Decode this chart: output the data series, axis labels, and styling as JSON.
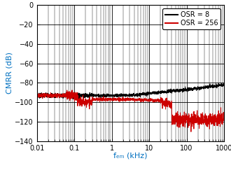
{
  "xlabel": "fₑₘ (kHz)",
  "ylabel": "CMRR (dB)",
  "xlim": [
    0.01,
    1000
  ],
  "ylim": [
    -140,
    0
  ],
  "yticks": [
    0,
    -20,
    -40,
    -60,
    -80,
    -100,
    -120,
    -140
  ],
  "legend": [
    {
      "label": "OSR = 8",
      "color": "#000000"
    },
    {
      "label": "OSR = 256",
      "color": "#cc0000"
    }
  ],
  "background_color": "#ffffff",
  "label_color": "#0070c0",
  "grid_color": "#000000"
}
